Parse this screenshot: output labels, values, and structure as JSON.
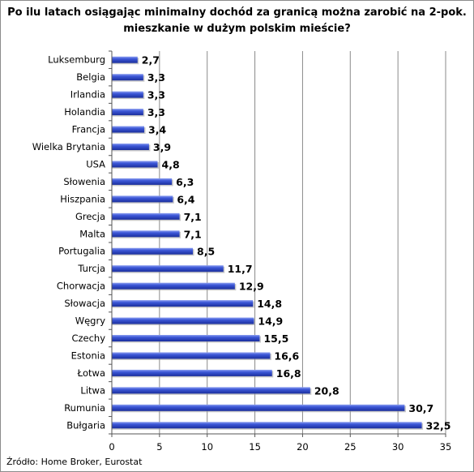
{
  "chart_data": {
    "type": "bar",
    "orientation": "horizontal",
    "title": "Po ilu latach osiągając minimalny dochód za granicą można zarobić na 2-pok. mieszkanie w dużym polskim mieście?",
    "categories": [
      "Luksemburg",
      "Belgia",
      "Irlandia",
      "Holandia",
      "Francja",
      "Wielka Brytania",
      "USA",
      "Słowenia",
      "Hiszpania",
      "Grecja",
      "Malta",
      "Portugalia",
      "Turcja",
      "Chorwacja",
      "Słowacja",
      "Węgry",
      "Czechy",
      "Estonia",
      "Łotwa",
      "Litwa",
      "Rumunia",
      "Bułgaria"
    ],
    "values": [
      2.7,
      3.3,
      3.3,
      3.3,
      3.4,
      3.9,
      4.8,
      6.3,
      6.4,
      7.1,
      7.1,
      8.5,
      11.7,
      12.9,
      14.8,
      14.9,
      15.5,
      16.6,
      16.8,
      20.8,
      30.7,
      32.5
    ],
    "value_labels": [
      "2,7",
      "3,3",
      "3,3",
      "3,3",
      "3,4",
      "3,9",
      "4,8",
      "6,3",
      "6,4",
      "7,1",
      "7,1",
      "8,5",
      "11,7",
      "12,9",
      "14,8",
      "14,9",
      "15,5",
      "16,6",
      "16,8",
      "20,8",
      "30,7",
      "32,5"
    ],
    "xlim": [
      0,
      35
    ],
    "xticks": [
      "0",
      "5",
      "10",
      "15",
      "20",
      "25",
      "30",
      "35"
    ],
    "grid": true,
    "bar_color": "#2b45c7",
    "source": "Źródło: Home Broker, Eurostat"
  }
}
